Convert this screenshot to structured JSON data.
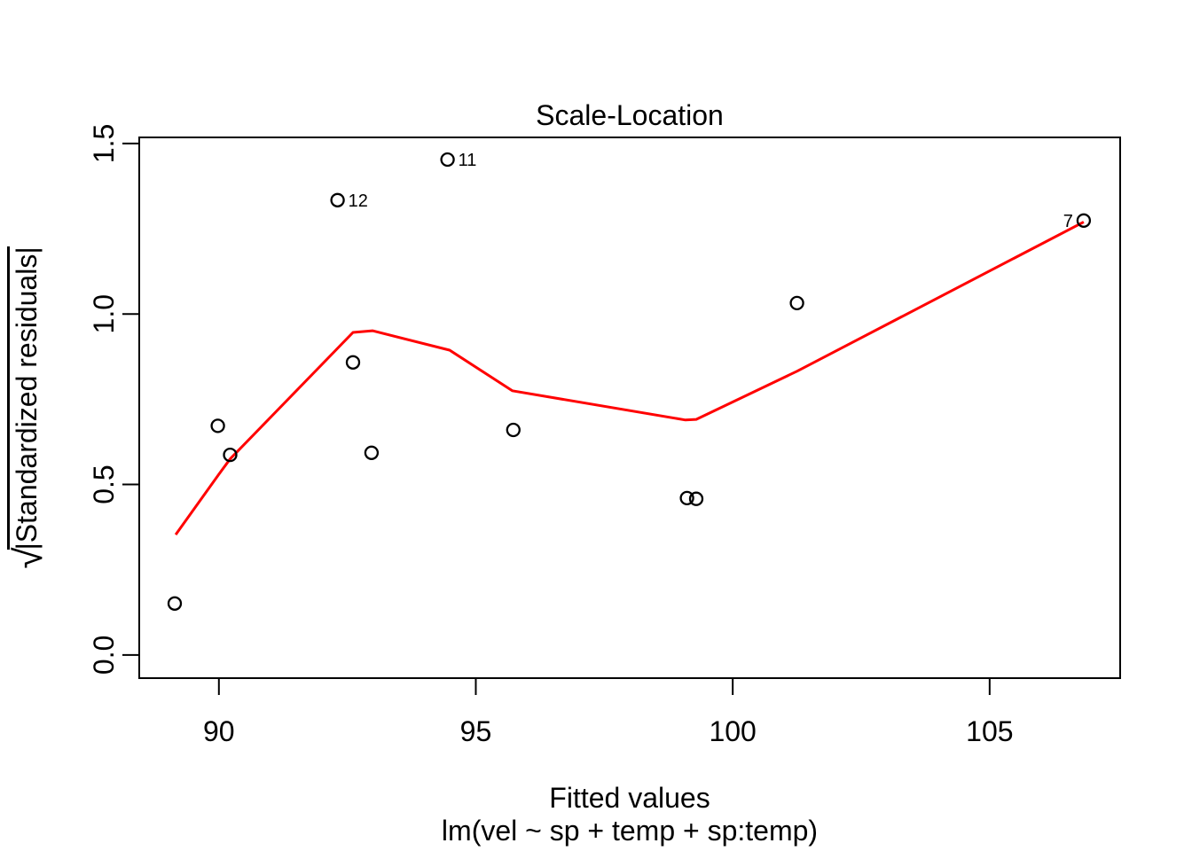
{
  "chart_data": {
    "type": "scatter",
    "title": "Scale-Location",
    "xlabel": "Fitted values",
    "sub_caption": "lm(vel ~ sp + temp + sp:temp)",
    "ylabel": "sqrt(|Standardized residuals|)",
    "ylabel_radical": "√",
    "ylabel_arg": "|Standardized residuals|",
    "x_ticks": [
      "90",
      "95",
      "100",
      "105"
    ],
    "x_tick_values": [
      90,
      95,
      100,
      105
    ],
    "y_ticks": [
      "0.0",
      "0.5",
      "1.0",
      "1.5"
    ],
    "y_tick_values": [
      0,
      0.5,
      1.0,
      1.5
    ],
    "xlim": [
      88.45,
      107.54
    ],
    "ylim": [
      -0.068,
      1.518
    ],
    "grid": false,
    "legend": null,
    "points": [
      {
        "x": 89.14,
        "y": 0.151
      },
      {
        "x": 89.98,
        "y": 0.672
      },
      {
        "x": 90.22,
        "y": 0.587
      },
      {
        "x": 92.31,
        "y": 1.334,
        "label": "12",
        "label_side": "right"
      },
      {
        "x": 92.61,
        "y": 0.858
      },
      {
        "x": 92.97,
        "y": 0.593
      },
      {
        "x": 94.45,
        "y": 1.453,
        "label": "11",
        "label_side": "right"
      },
      {
        "x": 95.73,
        "y": 0.66
      },
      {
        "x": 99.11,
        "y": 0.46
      },
      {
        "x": 99.29,
        "y": 0.458
      },
      {
        "x": 101.25,
        "y": 1.032
      },
      {
        "x": 106.83,
        "y": 1.274,
        "label": "7",
        "label_side": "left"
      }
    ],
    "smooth_line": {
      "name": "loess-smooth",
      "points": [
        {
          "x": 89.16,
          "y": 0.353
        },
        {
          "x": 90.0,
          "y": 0.53
        },
        {
          "x": 90.22,
          "y": 0.575
        },
        {
          "x": 92.61,
          "y": 0.946
        },
        {
          "x": 92.99,
          "y": 0.951
        },
        {
          "x": 94.49,
          "y": 0.894
        },
        {
          "x": 95.71,
          "y": 0.775
        },
        {
          "x": 99.08,
          "y": 0.689
        },
        {
          "x": 99.29,
          "y": 0.691
        },
        {
          "x": 101.25,
          "y": 0.832
        },
        {
          "x": 106.83,
          "y": 1.27
        }
      ]
    },
    "colors": {
      "points": "#000000",
      "smooth_line": "#ff0000",
      "axis": "#000000",
      "background": "#ffffff"
    }
  }
}
